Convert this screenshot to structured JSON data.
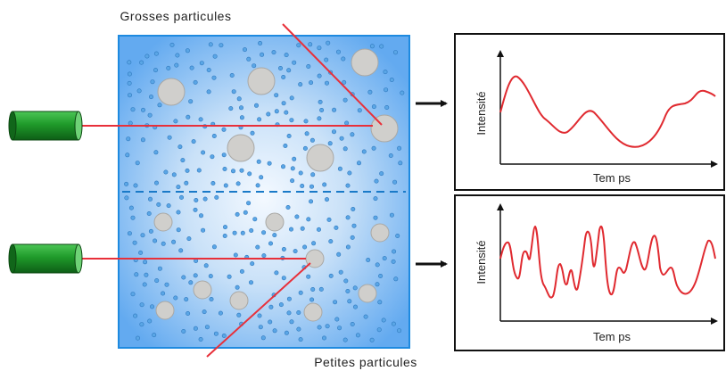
{
  "labels": {
    "large_particles": "Grosses particules",
    "small_particles": "Petites particules"
  },
  "graphs": [
    {
      "ylabel": "Intensité",
      "xlabel": "Tem ps"
    },
    {
      "ylabel": "Intensité",
      "xlabel": "Tem ps"
    }
  ],
  "colors": {
    "laser_body": "#1f9a2a",
    "laser_beam": "#e8303a",
    "signal": "#e02a30",
    "particle": "#d0cfcc",
    "small_dot": "#3d86c8",
    "cell_edge": "#1e8ae0",
    "divider": "#1a7ac8",
    "arrow": "#111111"
  }
}
